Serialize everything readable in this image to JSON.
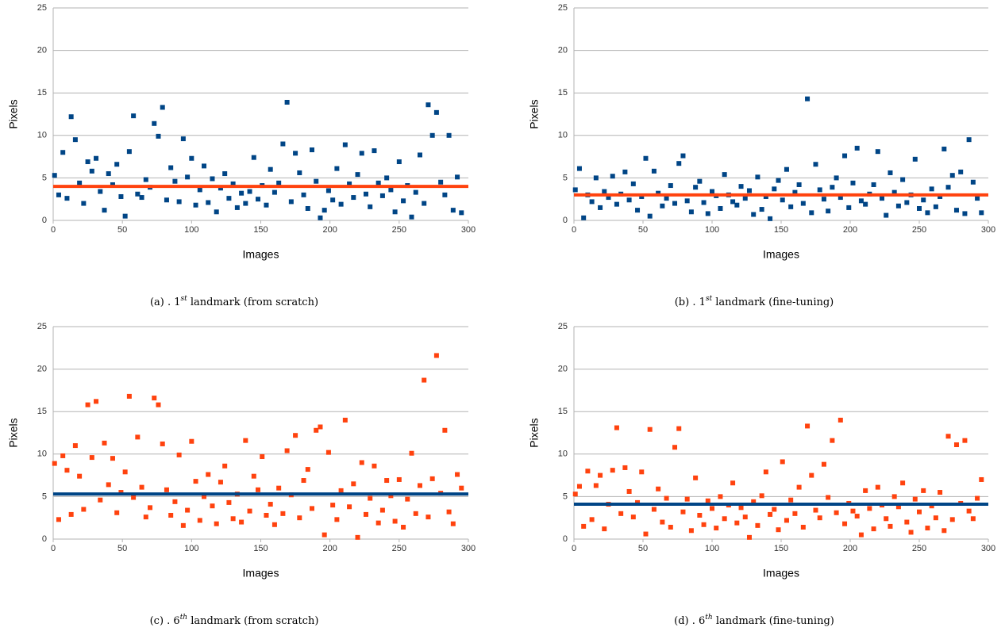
{
  "chart_data": [
    {
      "type": "scatter",
      "marker": "square",
      "color": "#004586",
      "xlabel": "Images",
      "ylabel": "Pixels",
      "caption_prefix": "(a) . 1",
      "caption_sup": "st",
      "caption_suffix": " landmark (from scratch)",
      "xlim": [
        0,
        300
      ],
      "xticks": [
        0,
        50,
        100,
        150,
        200,
        250,
        300
      ],
      "ylim": [
        0,
        25
      ],
      "yticks": [
        0,
        5,
        10,
        15,
        20,
        25
      ],
      "grid": true,
      "hline": {
        "value": 4.0,
        "color": "#ff420e"
      },
      "x": [
        1,
        4,
        7,
        10,
        13,
        16,
        19,
        22,
        25,
        28,
        31,
        34,
        37,
        40,
        43,
        46,
        49,
        52,
        55,
        58,
        61,
        64,
        67,
        70,
        73,
        76,
        79,
        82,
        85,
        88,
        91,
        94,
        97,
        100,
        103,
        106,
        109,
        112,
        115,
        118,
        121,
        124,
        127,
        130,
        133,
        136,
        139,
        142,
        145,
        148,
        151,
        154,
        157,
        160,
        163,
        166,
        169,
        172,
        175,
        178,
        181,
        184,
        187,
        190,
        193,
        196,
        199,
        202,
        205,
        208,
        211,
        214,
        217,
        220,
        223,
        226,
        229,
        232,
        235,
        238,
        241,
        244,
        247,
        250,
        253,
        256,
        259,
        262,
        265,
        268,
        271,
        274,
        277,
        280,
        283,
        286,
        289,
        292,
        295
      ],
      "values": [
        5.3,
        3.0,
        8.0,
        2.6,
        12.2,
        9.5,
        4.4,
        2.0,
        6.9,
        5.8,
        7.3,
        3.4,
        1.2,
        5.5,
        4.2,
        6.6,
        2.8,
        0.5,
        8.1,
        12.3,
        3.1,
        2.7,
        4.8,
        3.9,
        11.4,
        9.9,
        13.3,
        2.4,
        6.2,
        4.6,
        2.2,
        9.6,
        5.1,
        7.3,
        1.8,
        3.6,
        6.4,
        2.1,
        4.9,
        1.0,
        3.8,
        5.5,
        2.6,
        4.3,
        1.5,
        3.2,
        2.0,
        3.4,
        7.4,
        2.5,
        4.1,
        1.8,
        6.0,
        3.3,
        4.4,
        9.0,
        13.9,
        2.2,
        7.9,
        5.6,
        3.0,
        1.4,
        8.3,
        4.6,
        0.3,
        1.2,
        3.5,
        2.4,
        6.1,
        1.9,
        8.9,
        4.3,
        2.7,
        5.4,
        7.9,
        3.1,
        1.6,
        8.2,
        4.4,
        2.9,
        5.0,
        3.6,
        1.0,
        6.9,
        2.3,
        4.1,
        0.4,
        3.3,
        7.7,
        2.0,
        13.6,
        10.0,
        12.7,
        4.5,
        3.0,
        10.0,
        1.2,
        5.1,
        0.9
      ]
    },
    {
      "type": "scatter",
      "marker": "square",
      "color": "#004586",
      "xlabel": "Images",
      "ylabel": "Pixels",
      "caption_prefix": "(b) . 1",
      "caption_sup": "st",
      "caption_suffix": " landmark (fine-tuning)",
      "xlim": [
        0,
        300
      ],
      "xticks": [
        0,
        50,
        100,
        150,
        200,
        250,
        300
      ],
      "ylim": [
        0,
        25
      ],
      "yticks": [
        0,
        5,
        10,
        15,
        20,
        25
      ],
      "grid": true,
      "hline": {
        "value": 3.0,
        "color": "#ff420e"
      },
      "x": [
        1,
        4,
        7,
        10,
        13,
        16,
        19,
        22,
        25,
        28,
        31,
        34,
        37,
        40,
        43,
        46,
        49,
        52,
        55,
        58,
        61,
        64,
        67,
        70,
        73,
        76,
        79,
        82,
        85,
        88,
        91,
        94,
        97,
        100,
        103,
        106,
        109,
        112,
        115,
        118,
        121,
        124,
        127,
        130,
        133,
        136,
        139,
        142,
        145,
        148,
        151,
        154,
        157,
        160,
        163,
        166,
        169,
        172,
        175,
        178,
        181,
        184,
        187,
        190,
        193,
        196,
        199,
        202,
        205,
        208,
        211,
        214,
        217,
        220,
        223,
        226,
        229,
        232,
        235,
        238,
        241,
        244,
        247,
        250,
        253,
        256,
        259,
        262,
        265,
        268,
        271,
        274,
        277,
        280,
        283,
        286,
        289,
        292,
        295
      ],
      "values": [
        3.6,
        6.1,
        0.3,
        3.0,
        2.2,
        5.0,
        1.5,
        3.4,
        2.7,
        5.2,
        1.9,
        3.1,
        5.7,
        2.4,
        4.3,
        1.2,
        2.8,
        7.3,
        0.5,
        5.8,
        3.2,
        1.7,
        2.6,
        4.1,
        2.0,
        6.7,
        7.6,
        2.3,
        1.0,
        3.9,
        4.6,
        2.1,
        0.8,
        3.4,
        2.9,
        1.4,
        5.4,
        3.0,
        2.2,
        1.8,
        4.0,
        2.6,
        3.5,
        0.7,
        5.1,
        1.3,
        2.8,
        0.2,
        3.7,
        4.7,
        2.4,
        6.0,
        1.6,
        3.3,
        4.2,
        2.0,
        14.3,
        0.9,
        6.6,
        3.6,
        2.5,
        1.1,
        3.9,
        5.0,
        2.7,
        7.6,
        1.5,
        4.4,
        8.5,
        2.3,
        1.9,
        3.1,
        4.2,
        8.1,
        2.6,
        0.6,
        5.6,
        3.3,
        1.7,
        4.8,
        2.1,
        3.0,
        7.2,
        1.4,
        2.4,
        0.9,
        3.7,
        1.6,
        2.8,
        8.4,
        3.9,
        5.3,
        1.2,
        5.7,
        0.8,
        9.5,
        4.5,
        2.6,
        0.9
      ]
    },
    {
      "type": "scatter",
      "marker": "square",
      "color": "#ff420e",
      "xlabel": "Images",
      "ylabel": "Pixels",
      "caption_prefix": "(c) . 6",
      "caption_sup": "th",
      "caption_suffix": " landmark (from scratch)",
      "xlim": [
        0,
        300
      ],
      "xticks": [
        0,
        50,
        100,
        150,
        200,
        250,
        300
      ],
      "ylim": [
        0,
        25
      ],
      "yticks": [
        0,
        5,
        10,
        15,
        20,
        25
      ],
      "grid": true,
      "hline": {
        "value": 5.3,
        "color": "#004586"
      },
      "x": [
        1,
        4,
        7,
        10,
        13,
        16,
        19,
        22,
        25,
        28,
        31,
        34,
        37,
        40,
        43,
        46,
        49,
        52,
        55,
        58,
        61,
        64,
        67,
        70,
        73,
        76,
        79,
        82,
        85,
        88,
        91,
        94,
        97,
        100,
        103,
        106,
        109,
        112,
        115,
        118,
        121,
        124,
        127,
        130,
        133,
        136,
        139,
        142,
        145,
        148,
        151,
        154,
        157,
        160,
        163,
        166,
        169,
        172,
        175,
        178,
        181,
        184,
        187,
        190,
        193,
        196,
        199,
        202,
        205,
        208,
        211,
        214,
        217,
        220,
        223,
        226,
        229,
        232,
        235,
        238,
        241,
        244,
        247,
        250,
        253,
        256,
        259,
        262,
        265,
        268,
        271,
        274,
        277,
        280,
        283,
        286,
        289,
        292,
        295
      ],
      "values": [
        8.9,
        2.3,
        9.8,
        8.1,
        2.9,
        11.0,
        7.4,
        3.5,
        15.8,
        9.6,
        16.2,
        4.6,
        11.3,
        6.4,
        9.5,
        3.1,
        5.5,
        7.9,
        16.8,
        4.9,
        12.0,
        6.1,
        2.6,
        3.7,
        16.6,
        15.8,
        11.2,
        5.8,
        2.8,
        4.4,
        9.9,
        1.6,
        3.4,
        11.5,
        6.8,
        2.2,
        5.0,
        7.6,
        3.9,
        1.8,
        6.7,
        8.6,
        4.3,
        2.4,
        5.3,
        2.0,
        11.6,
        3.3,
        7.4,
        5.8,
        9.7,
        2.8,
        4.1,
        1.7,
        6.0,
        3.0,
        10.4,
        5.2,
        12.2,
        2.5,
        6.9,
        8.2,
        3.6,
        12.8,
        13.2,
        0.5,
        10.2,
        4.0,
        2.3,
        5.7,
        14.0,
        3.8,
        6.5,
        0.2,
        9.0,
        2.9,
        4.8,
        8.6,
        1.9,
        3.4,
        6.9,
        5.1,
        2.1,
        7.0,
        1.4,
        4.7,
        10.1,
        3.0,
        6.3,
        18.7,
        2.6,
        7.1,
        21.6,
        5.4,
        12.8,
        3.2,
        1.8,
        7.6,
        6.0
      ]
    },
    {
      "type": "scatter",
      "marker": "square",
      "color": "#ff420e",
      "xlabel": "Images",
      "ylabel": "Pixels",
      "caption_prefix": "(d) . 6",
      "caption_sup": "th",
      "caption_suffix": " landmark (fine-tuning)",
      "xlim": [
        0,
        300
      ],
      "xticks": [
        0,
        50,
        100,
        150,
        200,
        250,
        300
      ],
      "ylim": [
        0,
        25
      ],
      "yticks": [
        0,
        5,
        10,
        15,
        20,
        25
      ],
      "grid": true,
      "hline": {
        "value": 4.1,
        "color": "#004586"
      },
      "x": [
        1,
        4,
        7,
        10,
        13,
        16,
        19,
        22,
        25,
        28,
        31,
        34,
        37,
        40,
        43,
        46,
        49,
        52,
        55,
        58,
        61,
        64,
        67,
        70,
        73,
        76,
        79,
        82,
        85,
        88,
        91,
        94,
        97,
        100,
        103,
        106,
        109,
        112,
        115,
        118,
        121,
        124,
        127,
        130,
        133,
        136,
        139,
        142,
        145,
        148,
        151,
        154,
        157,
        160,
        163,
        166,
        169,
        172,
        175,
        178,
        181,
        184,
        187,
        190,
        193,
        196,
        199,
        202,
        205,
        208,
        211,
        214,
        217,
        220,
        223,
        226,
        229,
        232,
        235,
        238,
        241,
        244,
        247,
        250,
        253,
        256,
        259,
        262,
        265,
        268,
        271,
        274,
        277,
        280,
        283,
        286,
        289,
        292,
        295
      ],
      "values": [
        5.3,
        6.2,
        1.5,
        8.0,
        2.3,
        6.3,
        7.5,
        1.2,
        4.1,
        8.1,
        13.1,
        3.0,
        8.4,
        5.6,
        2.6,
        4.3,
        7.9,
        0.6,
        12.9,
        3.5,
        5.9,
        2.0,
        4.8,
        1.4,
        10.8,
        13.0,
        3.2,
        4.7,
        1.0,
        7.2,
        2.8,
        1.7,
        4.5,
        3.6,
        1.3,
        5.0,
        2.4,
        4.0,
        6.6,
        1.9,
        3.7,
        2.6,
        0.2,
        4.4,
        1.6,
        5.1,
        7.9,
        2.9,
        3.5,
        1.1,
        9.1,
        2.2,
        4.6,
        3.0,
        6.1,
        1.4,
        13.3,
        7.5,
        3.4,
        2.5,
        8.8,
        4.9,
        11.6,
        3.1,
        14.0,
        1.8,
        4.2,
        3.3,
        2.7,
        0.5,
        5.7,
        3.6,
        1.2,
        6.1,
        4.0,
        2.4,
        1.5,
        5.0,
        3.8,
        6.6,
        2.0,
        0.8,
        4.7,
        3.2,
        5.7,
        1.3,
        3.9,
        2.5,
        5.5,
        1.0,
        12.1,
        2.3,
        11.1,
        4.2,
        11.6,
        3.3,
        2.4,
        4.8,
        7.0
      ]
    }
  ]
}
